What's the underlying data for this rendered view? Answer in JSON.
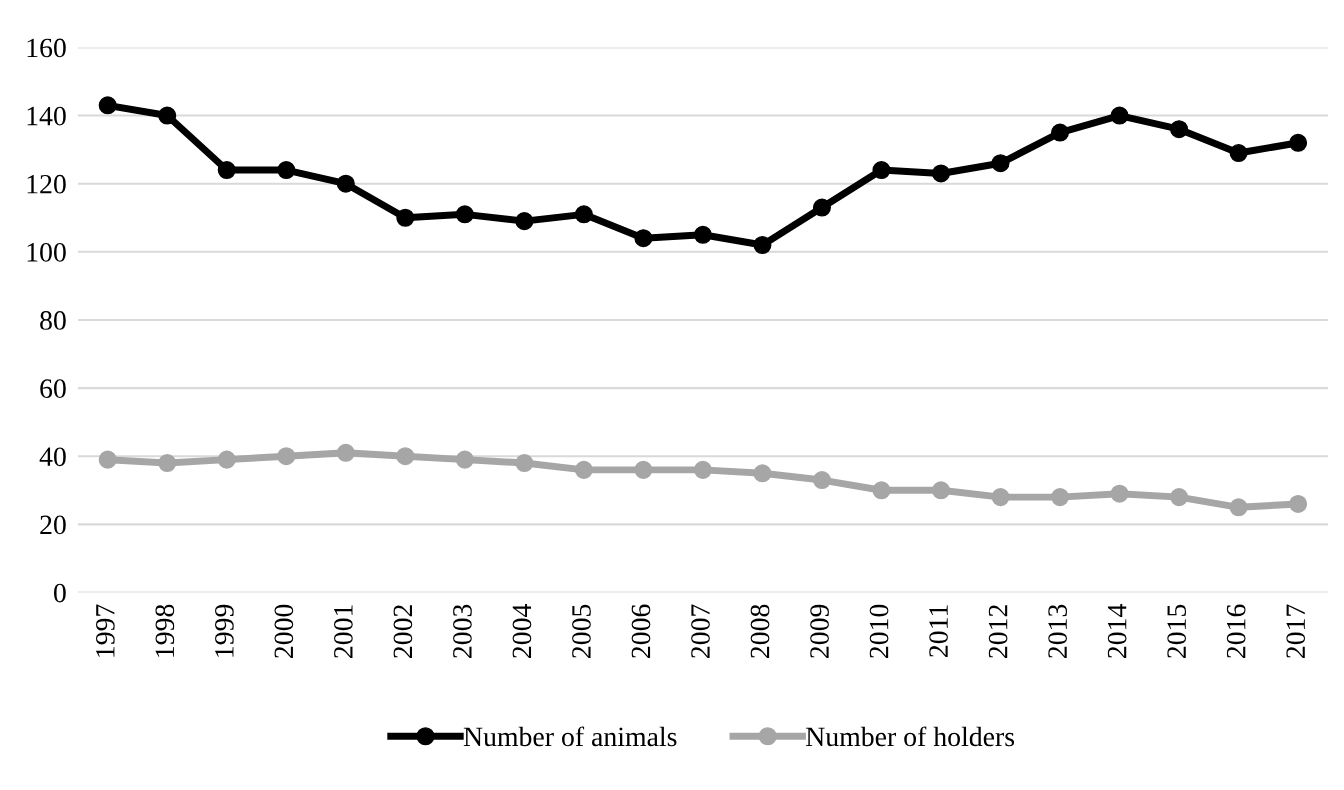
{
  "chart_data": {
    "type": "line",
    "categories": [
      "1997",
      "1998",
      "1999",
      "2000",
      "2001",
      "2002",
      "2003",
      "2004",
      "2005",
      "2006",
      "2007",
      "2008",
      "2009",
      "2010",
      "2011",
      "2012",
      "2013",
      "2014",
      "2015",
      "2016",
      "2017"
    ],
    "series": [
      {
        "name": "Number of animals",
        "color": "#000000",
        "values": [
          143,
          140,
          124,
          124,
          120,
          110,
          111,
          109,
          111,
          104,
          105,
          102,
          113,
          124,
          123,
          126,
          135,
          140,
          136,
          129,
          132
        ]
      },
      {
        "name": "Number of holders",
        "color": "#a6a6a6",
        "values": [
          39,
          38,
          39,
          40,
          41,
          40,
          39,
          38,
          36,
          36,
          36,
          35,
          33,
          30,
          30,
          28,
          28,
          29,
          28,
          25,
          26
        ]
      }
    ],
    "ylim": [
      0,
      160
    ],
    "yticks": [
      0,
      20,
      40,
      60,
      80,
      100,
      120,
      140,
      160
    ],
    "grid": "y",
    "legend": "bottom",
    "marker": "circle",
    "line_style": "solid"
  }
}
